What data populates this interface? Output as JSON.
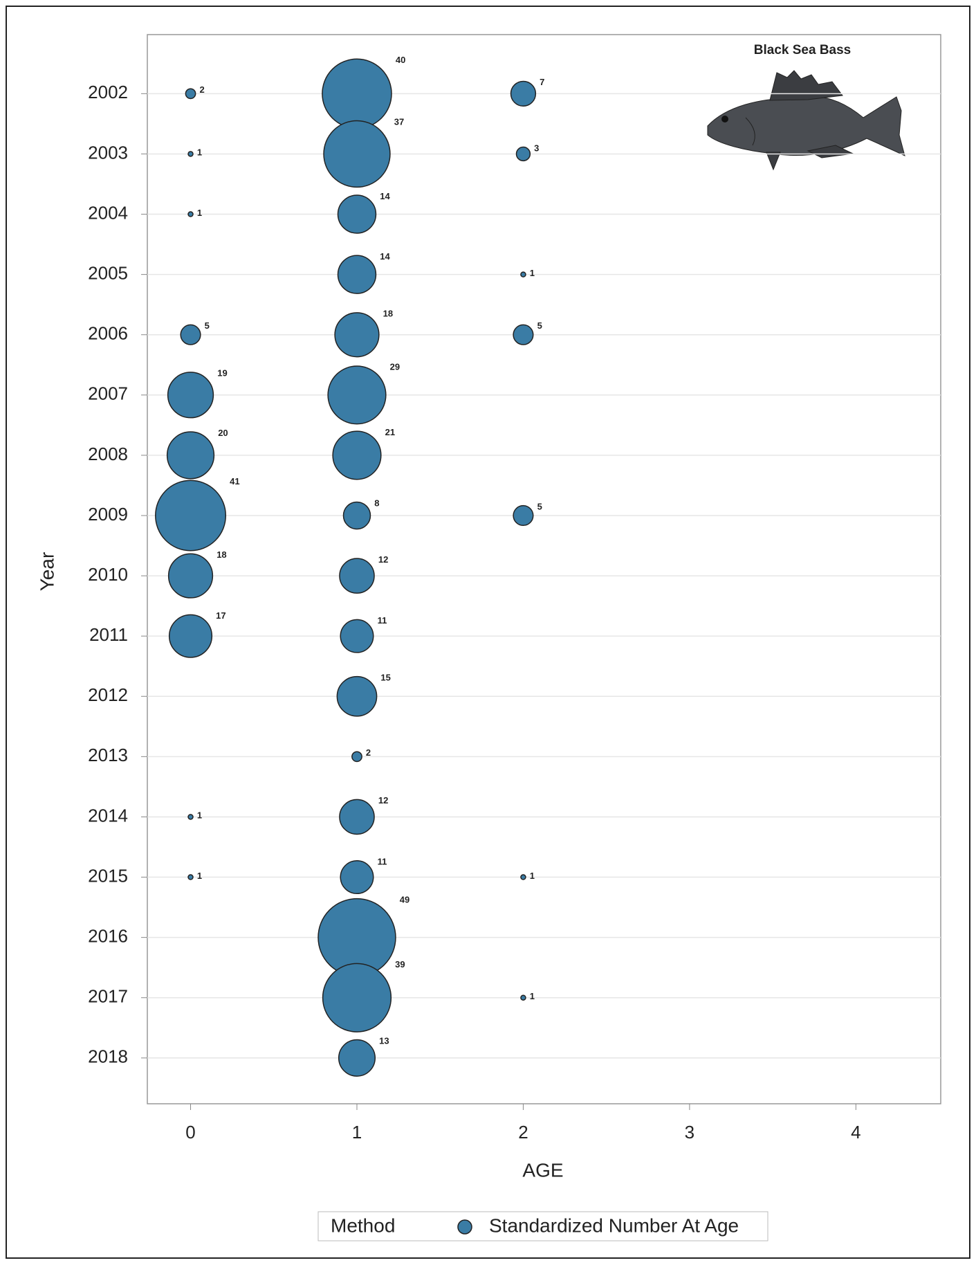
{
  "chart_data": {
    "type": "bubble",
    "annotation": "Black Sea Bass",
    "x_label": "AGE",
    "y_label": "Year",
    "legend_title": "Method",
    "xlim": [
      -0.26,
      4.51
    ],
    "xticks": [
      0,
      1,
      2,
      3,
      4
    ],
    "ylim": [
      2018.76,
      2001.02
    ],
    "yticks": [
      2002,
      2003,
      2004,
      2005,
      2006,
      2007,
      2008,
      2009,
      2010,
      2011,
      2012,
      2013,
      2014,
      2015,
      2016,
      2017,
      2018
    ],
    "grid": true,
    "series": [
      {
        "name": "Standardized Number At Age",
        "color": "#3a7ca5",
        "x": [
          0,
          1,
          2,
          0,
          1,
          2,
          0,
          1,
          1,
          2,
          0,
          1,
          2,
          0,
          1,
          0,
          1,
          0,
          1,
          2,
          0,
          1,
          0,
          1,
          1,
          1,
          0,
          1,
          0,
          1,
          2,
          1,
          1,
          2,
          1
        ],
        "y": [
          2002,
          2002,
          2002,
          2003,
          2003,
          2003,
          2004,
          2004,
          2005,
          2005,
          2006,
          2006,
          2006,
          2007,
          2007,
          2008,
          2008,
          2009,
          2009,
          2009,
          2010,
          2010,
          2011,
          2011,
          2012,
          2013,
          2014,
          2014,
          2015,
          2015,
          2015,
          2016,
          2017,
          2017,
          2018
        ],
        "sizes": [
          2,
          40,
          7,
          1,
          37,
          3,
          1,
          14,
          14,
          1,
          5,
          18,
          5,
          19,
          29,
          20,
          21,
          41,
          8,
          5,
          18,
          12,
          17,
          11,
          15,
          2,
          1,
          12,
          1,
          11,
          1,
          49,
          39,
          1,
          13
        ]
      }
    ]
  }
}
